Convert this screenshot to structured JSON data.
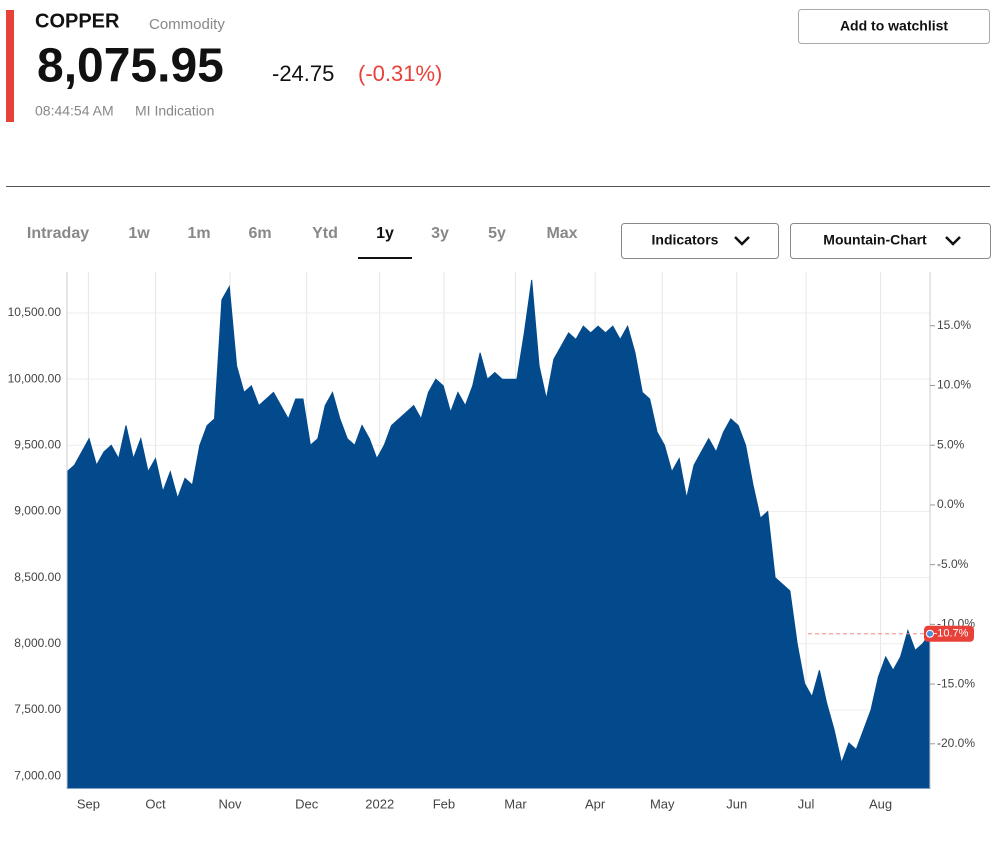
{
  "header": {
    "name": "COPPER",
    "kind": "Commodity",
    "price": "8,075.95",
    "change": "-24.75",
    "change_pct": "(-0.31%)",
    "time": "08:44:54 AM",
    "source": "MI Indication",
    "watch_button": "Add to watchlist"
  },
  "tabs": [
    "Intraday",
    "1w",
    "1m",
    "6m",
    "Ytd",
    "1y",
    "3y",
    "5y",
    "Max"
  ],
  "active_tab": 5,
  "controls": [
    "Indicators",
    "Mountain-Chart"
  ],
  "chart_data": {
    "type": "area",
    "series": [
      {
        "name": "COPPER",
        "color": "#034a8c",
        "values": [
          9300,
          9350,
          9450,
          9550,
          9350,
          9450,
          9500,
          9400,
          9650,
          9400,
          9550,
          9300,
          9400,
          9150,
          9300,
          9100,
          9250,
          9200,
          9500,
          9650,
          9700,
          10600,
          10700,
          10100,
          9900,
          9950,
          9800,
          9850,
          9900,
          9800,
          9700,
          9850,
          9850,
          9500,
          9550,
          9800,
          9900,
          9700,
          9550,
          9500,
          9650,
          9550,
          9400,
          9500,
          9650,
          9700,
          9750,
          9800,
          9700,
          9900,
          10000,
          9950,
          9750,
          9900,
          9800,
          9950,
          10200,
          10000,
          10050,
          10000,
          10000,
          10000,
          10350,
          10750,
          10100,
          9850,
          10150,
          10250,
          10350,
          10300,
          10400,
          10350,
          10400,
          10350,
          10400,
          10300,
          10400,
          10200,
          9900,
          9850,
          9600,
          9500,
          9300,
          9400,
          9100,
          9350,
          9450,
          9550,
          9450,
          9600,
          9700,
          9650,
          9500,
          9200,
          8950,
          9000,
          8500,
          8450,
          8400,
          8000,
          7700,
          7600,
          7800,
          7550,
          7350,
          7100,
          7250,
          7200,
          7350,
          7500,
          7750,
          7900,
          7800,
          7900,
          8100,
          7950,
          8000,
          8075.95
        ]
      }
    ],
    "xlim": [
      0,
      117
    ],
    "xticks": [
      {
        "value": 2.9,
        "label": "Sep"
      },
      {
        "value": 12,
        "label": "Oct"
      },
      {
        "value": 22.1,
        "label": "Nov"
      },
      {
        "value": 32.5,
        "label": "Dec"
      },
      {
        "value": 42.4,
        "label": "2022"
      },
      {
        "value": 51.1,
        "label": "Feb"
      },
      {
        "value": 60.8,
        "label": "Mar"
      },
      {
        "value": 71.6,
        "label": "Apr"
      },
      {
        "value": 80.7,
        "label": "May"
      },
      {
        "value": 90.8,
        "label": "Jun"
      },
      {
        "value": 100.2,
        "label": "Jul"
      },
      {
        "value": 110.3,
        "label": "Aug"
      }
    ],
    "ylim": [
      6910,
      10810
    ],
    "yticks": [
      {
        "value": 7000,
        "label": "7,000.00"
      },
      {
        "value": 7500,
        "label": "7,500.00"
      },
      {
        "value": 8000,
        "label": "8,000.00"
      },
      {
        "value": 8500,
        "label": "8,500.00"
      },
      {
        "value": 9000,
        "label": "9,000.00"
      },
      {
        "value": 9500,
        "label": "9,500.00"
      },
      {
        "value": 10000,
        "label": "10,000.00"
      },
      {
        "value": 10500,
        "label": "10,500.00"
      }
    ],
    "y2lim": [
      -23.7,
      19.5
    ],
    "y2ticks": [
      {
        "value": -20,
        "label": "-20.0%"
      },
      {
        "value": -15,
        "label": "-15.0%"
      },
      {
        "value": -10,
        "label": "-10.0%"
      },
      {
        "value": -5,
        "label": "-5.0%"
      },
      {
        "value": 0,
        "label": "0.0%"
      },
      {
        "value": 5,
        "label": "5.0%"
      },
      {
        "value": 10,
        "label": "10.0%"
      },
      {
        "value": 15,
        "label": "15.0%"
      }
    ],
    "last_label": "-10.7%",
    "grid": true
  }
}
